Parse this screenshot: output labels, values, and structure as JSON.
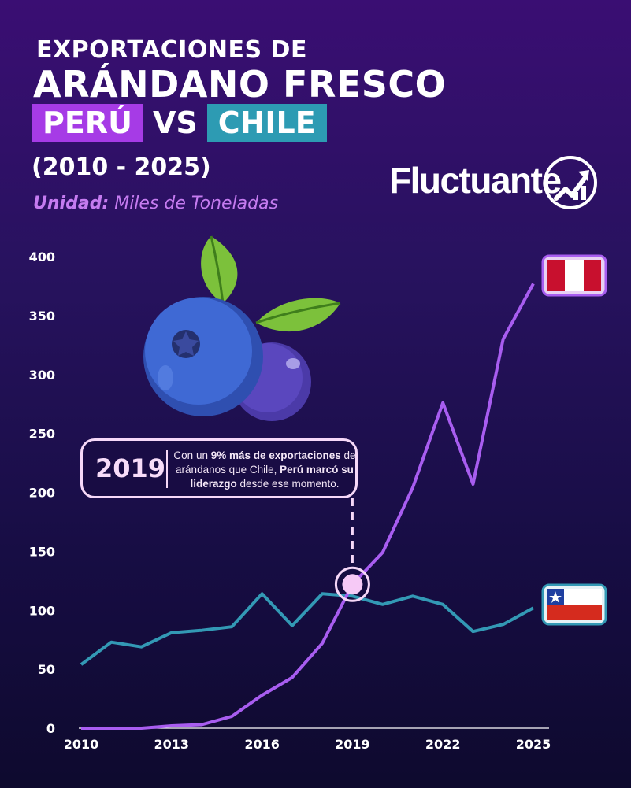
{
  "header": {
    "line1": "EXPORTACIONES DE",
    "line2": "ARÁNDANO FRESCO",
    "country_a": "PERÚ",
    "vs": "VS",
    "country_b": "CHILE",
    "years": "(2010 - 2025)",
    "unit_label": "Unidad:",
    "unit_value": "Miles de Toneladas"
  },
  "brand": {
    "name": "Fluctuante",
    "icon": "trend-arrow-icon"
  },
  "callout": {
    "year": "2019",
    "text_1": "Con un ",
    "text_2": "9% más de exportaciones",
    "text_3": " de arándanos que Chile, ",
    "text_4": "Perú marcó su liderazgo",
    "text_5": " desde ese momento."
  },
  "colors": {
    "peru": "#a63be6",
    "chile": "#2d9bb3",
    "peru_line": "#a85df0",
    "chile_line": "#3399b5",
    "unit": "#c57bf0"
  },
  "illustration": "blueberry-illustration",
  "flags": [
    "peru-flag-icon",
    "chile-flag-icon"
  ],
  "chart_data": {
    "type": "line",
    "x": [
      2010,
      2011,
      2012,
      2013,
      2014,
      2015,
      2016,
      2017,
      2018,
      2019,
      2020,
      2021,
      2022,
      2023,
      2024,
      2025
    ],
    "series": [
      {
        "values": [
          0,
          0,
          0,
          2,
          3,
          10,
          28,
          43,
          72,
          122,
          149,
          204,
          276,
          207,
          330,
          377
        ]
      },
      {
        "values": [
          54,
          73,
          69,
          81,
          83,
          86,
          114,
          87,
          114,
          112,
          105,
          112,
          105,
          82,
          88,
          102
        ]
      }
    ],
    "xticks": [
      2010,
      2013,
      2016,
      2019,
      2022,
      2025
    ],
    "yticks": [
      0,
      50,
      100,
      150,
      200,
      250,
      300,
      350,
      400
    ],
    "ylim": [
      0,
      400
    ],
    "xlim": [
      2010,
      2025
    ],
    "highlight_year": 2019,
    "grid": false,
    "legend": "flags at line ends"
  }
}
